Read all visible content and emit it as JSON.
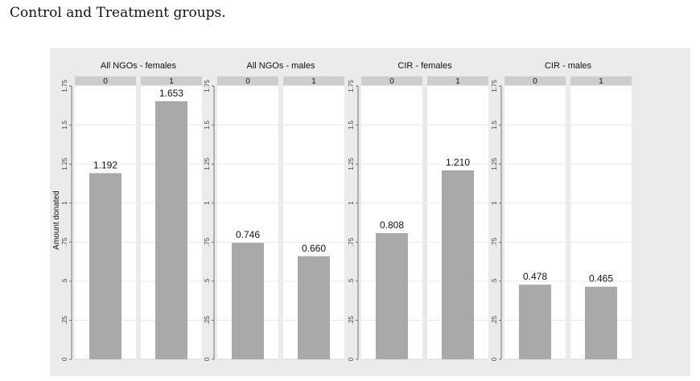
{
  "caption": "Control and Treatment groups.",
  "chart_data": {
    "type": "bar",
    "ylabel": "Amount donated",
    "ylim": [
      0,
      1.75
    ],
    "yticks": [
      0,
      0.25,
      0.5,
      0.75,
      1,
      1.25,
      1.5,
      1.75
    ],
    "ytick_labels": [
      "0",
      ".25",
      ".5",
      ".75",
      "1",
      "1.25",
      "1.5",
      "1.75"
    ],
    "grid": true,
    "categories": [
      "0",
      "1"
    ],
    "bar_color": "#a9a9a9",
    "panels": [
      {
        "title": "All NGOs - females",
        "values": [
          1.192,
          1.653
        ],
        "value_labels": [
          "1.192",
          "1.653"
        ]
      },
      {
        "title": "All NGOs - males",
        "values": [
          0.746,
          0.66
        ],
        "value_labels": [
          "0.746",
          "0.660"
        ]
      },
      {
        "title": "CIR - females",
        "values": [
          0.808,
          1.21
        ],
        "value_labels": [
          "0.808",
          "1.210"
        ]
      },
      {
        "title": "CIR - males",
        "values": [
          0.478,
          0.465
        ],
        "value_labels": [
          "0.478",
          "0.465"
        ]
      }
    ]
  }
}
